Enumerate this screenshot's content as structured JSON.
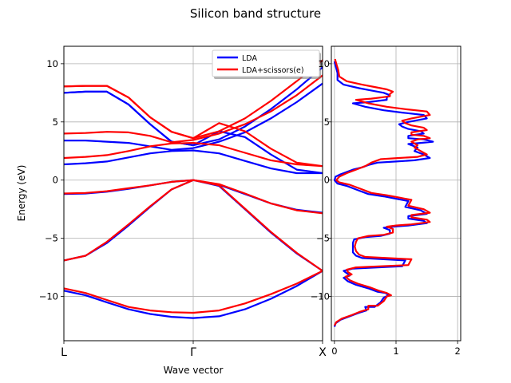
{
  "figure": {
    "title": "Silicon band structure"
  },
  "chart_data": [
    {
      "type": "line",
      "panel": "bands",
      "title": "",
      "xlabel": "Wave vector",
      "ylabel": "Energy (eV)",
      "xticks": [
        {
          "pos": 0,
          "label": "L"
        },
        {
          "pos": 1,
          "label": "Γ"
        },
        {
          "pos": 2,
          "label": "X"
        }
      ],
      "xlim": [
        0,
        2
      ],
      "ylim": [
        -13.8,
        11.5
      ],
      "yticks": [
        -10,
        -5,
        0,
        5,
        10
      ],
      "grid": true,
      "legend": {
        "placement": "top-right",
        "entries": [
          "LDA",
          "LDA+scissors(e)"
        ]
      },
      "x": [
        0,
        0.167,
        0.333,
        0.5,
        0.667,
        0.833,
        1.0,
        1.2,
        1.4,
        1.6,
        1.8,
        2.0
      ],
      "series": [
        {
          "name": "LDA",
          "color": "#0000ff",
          "bands": [
            [
              -9.5,
              -9.9,
              -10.5,
              -11.1,
              -11.5,
              -11.75,
              -11.85,
              -11.7,
              -11.1,
              -10.2,
              -9.1,
              -7.8
            ],
            [
              -6.9,
              -6.5,
              -5.4,
              -3.9,
              -2.3,
              -0.8,
              0.0,
              -0.5,
              -2.5,
              -4.5,
              -6.3,
              -7.8
            ],
            [
              -1.2,
              -1.15,
              -1.0,
              -0.75,
              -0.45,
              -0.15,
              0.0,
              -0.4,
              -1.2,
              -2.0,
              -2.55,
              -2.8
            ],
            [
              1.35,
              1.45,
              1.6,
              1.95,
              2.3,
              2.5,
              2.55,
              2.3,
              1.65,
              1.0,
              0.6,
              0.6
            ],
            [
              3.4,
              3.4,
              3.3,
              3.2,
              2.9,
              2.6,
              2.75,
              3.3,
              4.1,
              5.3,
              6.7,
              8.3
            ],
            [
              7.5,
              7.6,
              7.6,
              6.5,
              4.8,
              3.3,
              3.0,
              4.2,
              3.7,
              2.2,
              0.9,
              0.6
            ],
            [
              7.5,
              7.6,
              7.6,
              6.5,
              4.8,
              3.3,
              3.0,
              3.5,
              4.6,
              6.1,
              7.8,
              9.7
            ]
          ]
        },
        {
          "name": "LDA+scissors(e)",
          "color": "#ff0000",
          "bands": [
            [
              -9.3,
              -9.7,
              -10.3,
              -10.9,
              -11.2,
              -11.35,
              -11.4,
              -11.2,
              -10.6,
              -9.8,
              -8.9,
              -7.8
            ],
            [
              -6.9,
              -6.5,
              -5.3,
              -3.8,
              -2.25,
              -0.8,
              0.0,
              -0.45,
              -2.45,
              -4.45,
              -6.25,
              -7.8
            ],
            [
              -1.15,
              -1.1,
              -0.95,
              -0.7,
              -0.45,
              -0.15,
              0.0,
              -0.35,
              -1.15,
              -2.0,
              -2.6,
              -2.85
            ],
            [
              1.9,
              2.0,
              2.15,
              2.5,
              2.9,
              3.15,
              3.2,
              3.0,
              2.35,
              1.7,
              1.35,
              1.2
            ],
            [
              4.0,
              4.05,
              4.15,
              4.1,
              3.8,
              3.25,
              3.45,
              4.0,
              4.8,
              5.9,
              7.3,
              9.0
            ],
            [
              8.05,
              8.1,
              8.1,
              7.1,
              5.4,
              4.15,
              3.6,
              4.9,
              4.2,
              2.7,
              1.5,
              1.2
            ],
            [
              8.05,
              8.1,
              8.1,
              7.1,
              5.4,
              4.15,
              3.6,
              4.2,
              5.3,
              6.8,
              8.5,
              10.3
            ]
          ]
        }
      ]
    },
    {
      "type": "line",
      "panel": "dos",
      "title": "",
      "xlabel": "",
      "ylabel": "",
      "xlim": [
        -0.05,
        2.05
      ],
      "xticks": [
        0,
        1,
        2
      ],
      "ylim": [
        -13.8,
        11.5
      ],
      "yticks": [
        -10,
        -5,
        0,
        5,
        10
      ],
      "grid": true,
      "series": [
        {
          "name": "LDA",
          "color": "#0000ff",
          "points": [
            [
              0.0,
              -12.6
            ],
            [
              0.02,
              -12.3
            ],
            [
              0.1,
              -12.0
            ],
            [
              0.25,
              -11.7
            ],
            [
              0.4,
              -11.4
            ],
            [
              0.52,
              -11.2
            ],
            [
              0.5,
              -10.9
            ],
            [
              0.65,
              -10.9
            ],
            [
              0.75,
              -10.5
            ],
            [
              0.8,
              -10.1
            ],
            [
              0.88,
              -9.9
            ],
            [
              0.83,
              -9.7
            ],
            [
              0.7,
              -9.6
            ],
            [
              0.55,
              -9.3
            ],
            [
              0.35,
              -9.0
            ],
            [
              0.22,
              -8.7
            ],
            [
              0.15,
              -8.4
            ],
            [
              0.25,
              -8.2
            ],
            [
              0.2,
              -8.0
            ],
            [
              0.15,
              -7.8
            ],
            [
              0.3,
              -7.6
            ],
            [
              0.7,
              -7.5
            ],
            [
              1.1,
              -7.4
            ],
            [
              1.15,
              -6.9
            ],
            [
              0.8,
              -6.8
            ],
            [
              0.45,
              -6.7
            ],
            [
              0.35,
              -6.5
            ],
            [
              0.3,
              -6.2
            ],
            [
              0.3,
              -5.8
            ],
            [
              0.3,
              -5.4
            ],
            [
              0.32,
              -5.1
            ],
            [
              0.5,
              -4.9
            ],
            [
              0.75,
              -4.8
            ],
            [
              0.9,
              -4.6
            ],
            [
              0.9,
              -4.3
            ],
            [
              0.8,
              -4.1
            ],
            [
              0.95,
              -4.0
            ],
            [
              1.2,
              -3.9
            ],
            [
              1.5,
              -3.7
            ],
            [
              1.45,
              -3.5
            ],
            [
              1.2,
              -3.3
            ],
            [
              1.2,
              -3.1
            ],
            [
              1.5,
              -2.9
            ],
            [
              1.4,
              -2.6
            ],
            [
              1.15,
              -2.3
            ],
            [
              1.2,
              -1.8
            ],
            [
              1.0,
              -1.6
            ],
            [
              0.8,
              -1.4
            ],
            [
              0.55,
              -1.2
            ],
            [
              0.4,
              -0.9
            ],
            [
              0.2,
              -0.5
            ],
            [
              0.05,
              -0.3
            ],
            [
              0.0,
              0.0
            ],
            [
              0.02,
              0.3
            ],
            [
              0.1,
              0.5
            ],
            [
              0.2,
              0.7
            ],
            [
              0.3,
              0.9
            ],
            [
              0.45,
              1.1
            ],
            [
              0.55,
              1.3
            ],
            [
              0.7,
              1.5
            ],
            [
              1.0,
              1.6
            ],
            [
              1.3,
              1.7
            ],
            [
              1.55,
              1.9
            ],
            [
              1.45,
              2.2
            ],
            [
              1.3,
              2.5
            ],
            [
              1.35,
              2.8
            ],
            [
              1.25,
              3.0
            ],
            [
              1.2,
              3.1
            ],
            [
              1.4,
              3.2
            ],
            [
              1.6,
              3.3
            ],
            [
              1.45,
              3.5
            ],
            [
              1.2,
              3.6
            ],
            [
              1.2,
              3.8
            ],
            [
              1.45,
              4.0
            ],
            [
              1.4,
              4.2
            ],
            [
              1.2,
              4.4
            ],
            [
              1.1,
              4.6
            ],
            [
              1.05,
              4.8
            ],
            [
              1.2,
              5.0
            ],
            [
              1.5,
              5.3
            ],
            [
              1.45,
              5.6
            ],
            [
              1.1,
              5.8
            ],
            [
              0.8,
              6.0
            ],
            [
              0.5,
              6.3
            ],
            [
              0.3,
              6.6
            ],
            [
              0.55,
              6.7
            ],
            [
              0.7,
              6.8
            ],
            [
              0.85,
              6.9
            ],
            [
              0.85,
              7.1
            ],
            [
              0.9,
              7.3
            ],
            [
              0.8,
              7.5
            ],
            [
              0.6,
              7.7
            ],
            [
              0.4,
              7.9
            ],
            [
              0.15,
              8.2
            ],
            [
              0.05,
              8.6
            ],
            [
              0.05,
              9.2
            ],
            [
              0.02,
              9.8
            ],
            [
              0.0,
              10.2
            ]
          ]
        },
        {
          "name": "LDA+scissors(e)",
          "color": "#ff0000",
          "points": [
            [
              0.0,
              -12.5
            ],
            [
              0.03,
              -12.2
            ],
            [
              0.12,
              -11.9
            ],
            [
              0.28,
              -11.6
            ],
            [
              0.42,
              -11.3
            ],
            [
              0.55,
              -11.1
            ],
            [
              0.55,
              -10.8
            ],
            [
              0.7,
              -10.8
            ],
            [
              0.8,
              -10.4
            ],
            [
              0.85,
              -10.0
            ],
            [
              0.92,
              -9.9
            ],
            [
              0.85,
              -9.7
            ],
            [
              0.72,
              -9.5
            ],
            [
              0.57,
              -9.2
            ],
            [
              0.38,
              -8.9
            ],
            [
              0.25,
              -8.6
            ],
            [
              0.18,
              -8.3
            ],
            [
              0.28,
              -8.1
            ],
            [
              0.22,
              -7.9
            ],
            [
              0.2,
              -7.7
            ],
            [
              0.35,
              -7.5
            ],
            [
              0.75,
              -7.4
            ],
            [
              1.2,
              -7.3
            ],
            [
              1.25,
              -6.8
            ],
            [
              0.85,
              -6.7
            ],
            [
              0.5,
              -6.6
            ],
            [
              0.4,
              -6.4
            ],
            [
              0.35,
              -6.1
            ],
            [
              0.33,
              -5.7
            ],
            [
              0.35,
              -5.3
            ],
            [
              0.38,
              -5.0
            ],
            [
              0.55,
              -4.8
            ],
            [
              0.8,
              -4.7
            ],
            [
              0.95,
              -4.5
            ],
            [
              0.95,
              -4.2
            ],
            [
              0.85,
              -4.0
            ],
            [
              1.0,
              -3.9
            ],
            [
              1.25,
              -3.8
            ],
            [
              1.55,
              -3.6
            ],
            [
              1.5,
              -3.4
            ],
            [
              1.25,
              -3.2
            ],
            [
              1.25,
              -3.0
            ],
            [
              1.55,
              -2.8
            ],
            [
              1.45,
              -2.5
            ],
            [
              1.2,
              -2.2
            ],
            [
              1.25,
              -1.7
            ],
            [
              1.05,
              -1.5
            ],
            [
              0.85,
              -1.3
            ],
            [
              0.6,
              -1.1
            ],
            [
              0.45,
              -0.8
            ],
            [
              0.25,
              -0.4
            ],
            [
              0.08,
              -0.2
            ],
            [
              0.03,
              0.0
            ],
            [
              0.08,
              0.3
            ],
            [
              0.2,
              0.6
            ],
            [
              0.35,
              0.9
            ],
            [
              0.5,
              1.2
            ],
            [
              0.6,
              1.5
            ],
            [
              0.75,
              1.8
            ],
            [
              1.05,
              1.9
            ],
            [
              1.35,
              2.0
            ],
            [
              1.5,
              2.2
            ],
            [
              1.4,
              2.5
            ],
            [
              1.3,
              2.8
            ],
            [
              1.35,
              3.0
            ],
            [
              1.25,
              3.3
            ],
            [
              1.35,
              3.5
            ],
            [
              1.55,
              3.6
            ],
            [
              1.45,
              3.8
            ],
            [
              1.25,
              3.9
            ],
            [
              1.25,
              4.1
            ],
            [
              1.5,
              4.3
            ],
            [
              1.45,
              4.5
            ],
            [
              1.25,
              4.7
            ],
            [
              1.15,
              4.9
            ],
            [
              1.1,
              5.1
            ],
            [
              1.25,
              5.3
            ],
            [
              1.55,
              5.6
            ],
            [
              1.5,
              5.9
            ],
            [
              1.15,
              6.1
            ],
            [
              0.85,
              6.3
            ],
            [
              0.55,
              6.6
            ],
            [
              0.35,
              6.9
            ],
            [
              0.6,
              7.0
            ],
            [
              0.75,
              7.1
            ],
            [
              0.9,
              7.2
            ],
            [
              0.9,
              7.4
            ],
            [
              0.95,
              7.6
            ],
            [
              0.85,
              7.8
            ],
            [
              0.65,
              8.0
            ],
            [
              0.45,
              8.2
            ],
            [
              0.2,
              8.5
            ],
            [
              0.08,
              8.9
            ],
            [
              0.06,
              9.5
            ],
            [
              0.03,
              10.0
            ],
            [
              0.01,
              10.4
            ]
          ]
        }
      ]
    }
  ]
}
